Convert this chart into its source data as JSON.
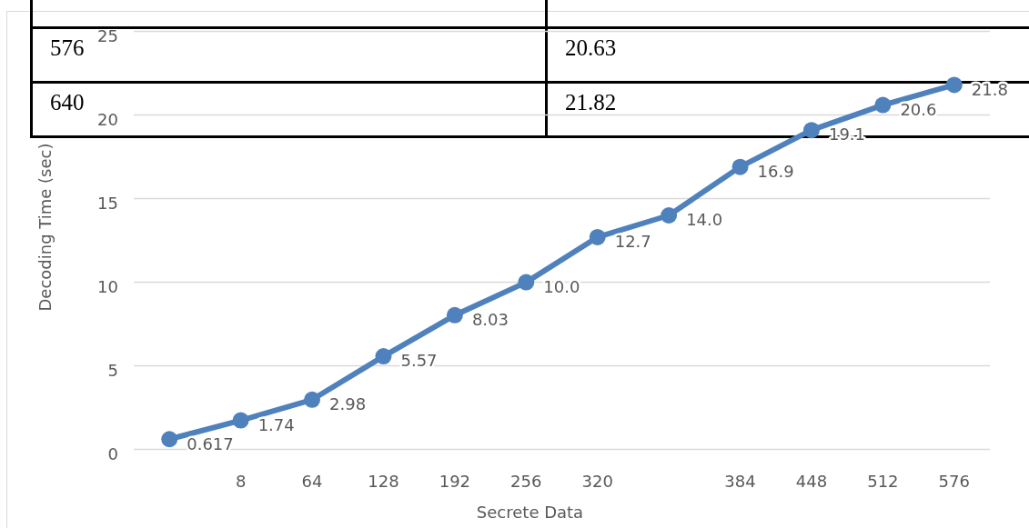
{
  "chart_data": {
    "type": "line",
    "categories": [
      null,
      "8",
      "64",
      "128",
      "192",
      "256",
      "320",
      null,
      "384",
      "448",
      "512",
      "576"
    ],
    "values": [
      0.617,
      1.74,
      2.98,
      5.57,
      8.03,
      10.0,
      12.7,
      14.0,
      16.9,
      19.1,
      20.6,
      21.8
    ],
    "value_labels": [
      "0.617",
      "1.74",
      "2.98",
      "5.57",
      "8.03",
      "10.0",
      "12.7",
      "14.0",
      "16.9",
      "19.1",
      "20.6",
      "21.8"
    ],
    "color": "#4f81bd",
    "marker": "circle",
    "ylim": [
      0,
      25
    ],
    "yticks": [
      0,
      5,
      10,
      15,
      20,
      25
    ],
    "grid": "y",
    "xlabel": "Secrete Data",
    "ylabel": "Decoding Time (sec)",
    "annotations": [
      "576",
      "20.63",
      "640",
      "21.82"
    ]
  }
}
